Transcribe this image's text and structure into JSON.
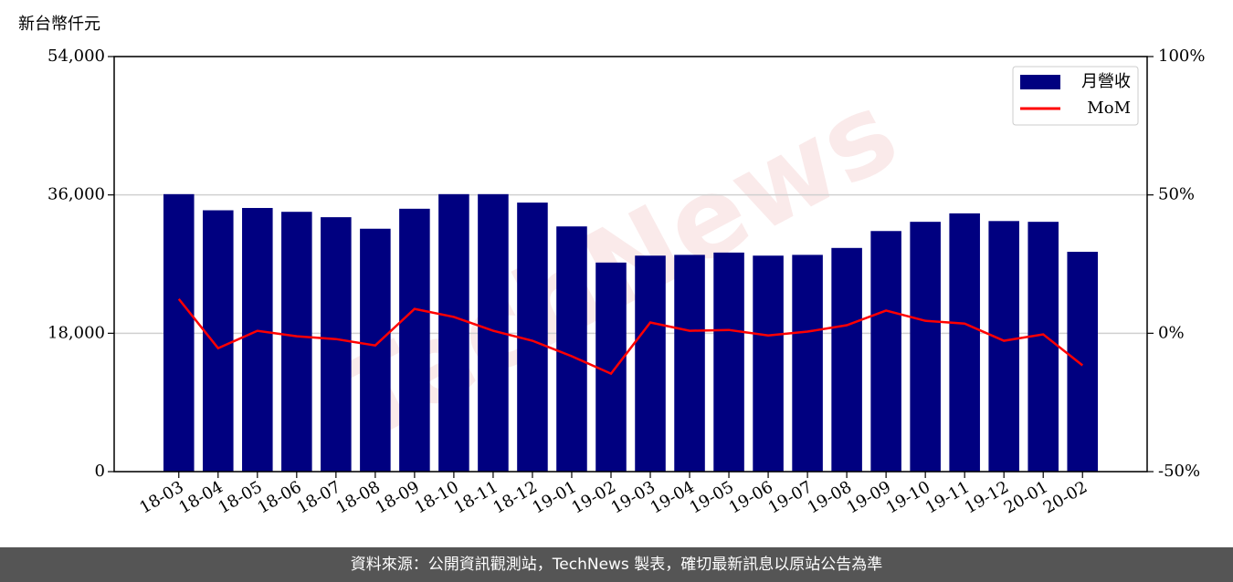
{
  "chart_data": {
    "type": "bar",
    "y_label": "新台幣仟元",
    "watermark": "TechNews",
    "footer": "資料來源：公開資訊觀測站，TechNews 製表，確切最新訊息以原站公告為準",
    "categories": [
      "18-03",
      "18-04",
      "18-05",
      "18-06",
      "18-07",
      "18-08",
      "18-09",
      "18-10",
      "18-11",
      "18-12",
      "19-01",
      "19-02",
      "19-03",
      "19-04",
      "19-05",
      "19-06",
      "19-07",
      "19-08",
      "19-09",
      "19-10",
      "19-11",
      "19-12",
      "20-01",
      "20-02"
    ],
    "series": [
      {
        "name": "月營收",
        "type": "bar",
        "color": "#000080",
        "values": [
          36100,
          34000,
          34300,
          33800,
          33100,
          31600,
          34200,
          36100,
          36100,
          35000,
          31900,
          27200,
          28100,
          28200,
          28500,
          28100,
          28200,
          29100,
          31300,
          32500,
          33600,
          32600,
          32500,
          28600
        ]
      },
      {
        "name": "MoM",
        "type": "line",
        "color": "#ff0000",
        "axis": "y2",
        "values": [
          12.4,
          -5.4,
          0.9,
          -1.1,
          -2.1,
          -4.4,
          8.8,
          5.9,
          0.9,
          -2.7,
          -8.3,
          -14.6,
          3.9,
          0.9,
          1.2,
          -0.8,
          0.6,
          2.9,
          8.2,
          4.5,
          3.5,
          -2.7,
          -0.4,
          -11.6
        ]
      }
    ],
    "ylim": [
      0,
      54000
    ],
    "yticks": [
      0,
      {
        "value": 18000,
        "label": "18,000"
      },
      {
        "value": 36000,
        "label": "36,000"
      },
      {
        "value": 54000,
        "label": "54,000"
      }
    ],
    "y2lim": [
      -50,
      100
    ],
    "y2ticks": [
      {
        "value": -50,
        "label": "-50%"
      },
      {
        "value": 0,
        "label": "0%"
      },
      {
        "value": 50,
        "label": "50%"
      },
      {
        "value": 100,
        "label": "100%"
      }
    ],
    "grid": true,
    "legend": "upper right"
  }
}
